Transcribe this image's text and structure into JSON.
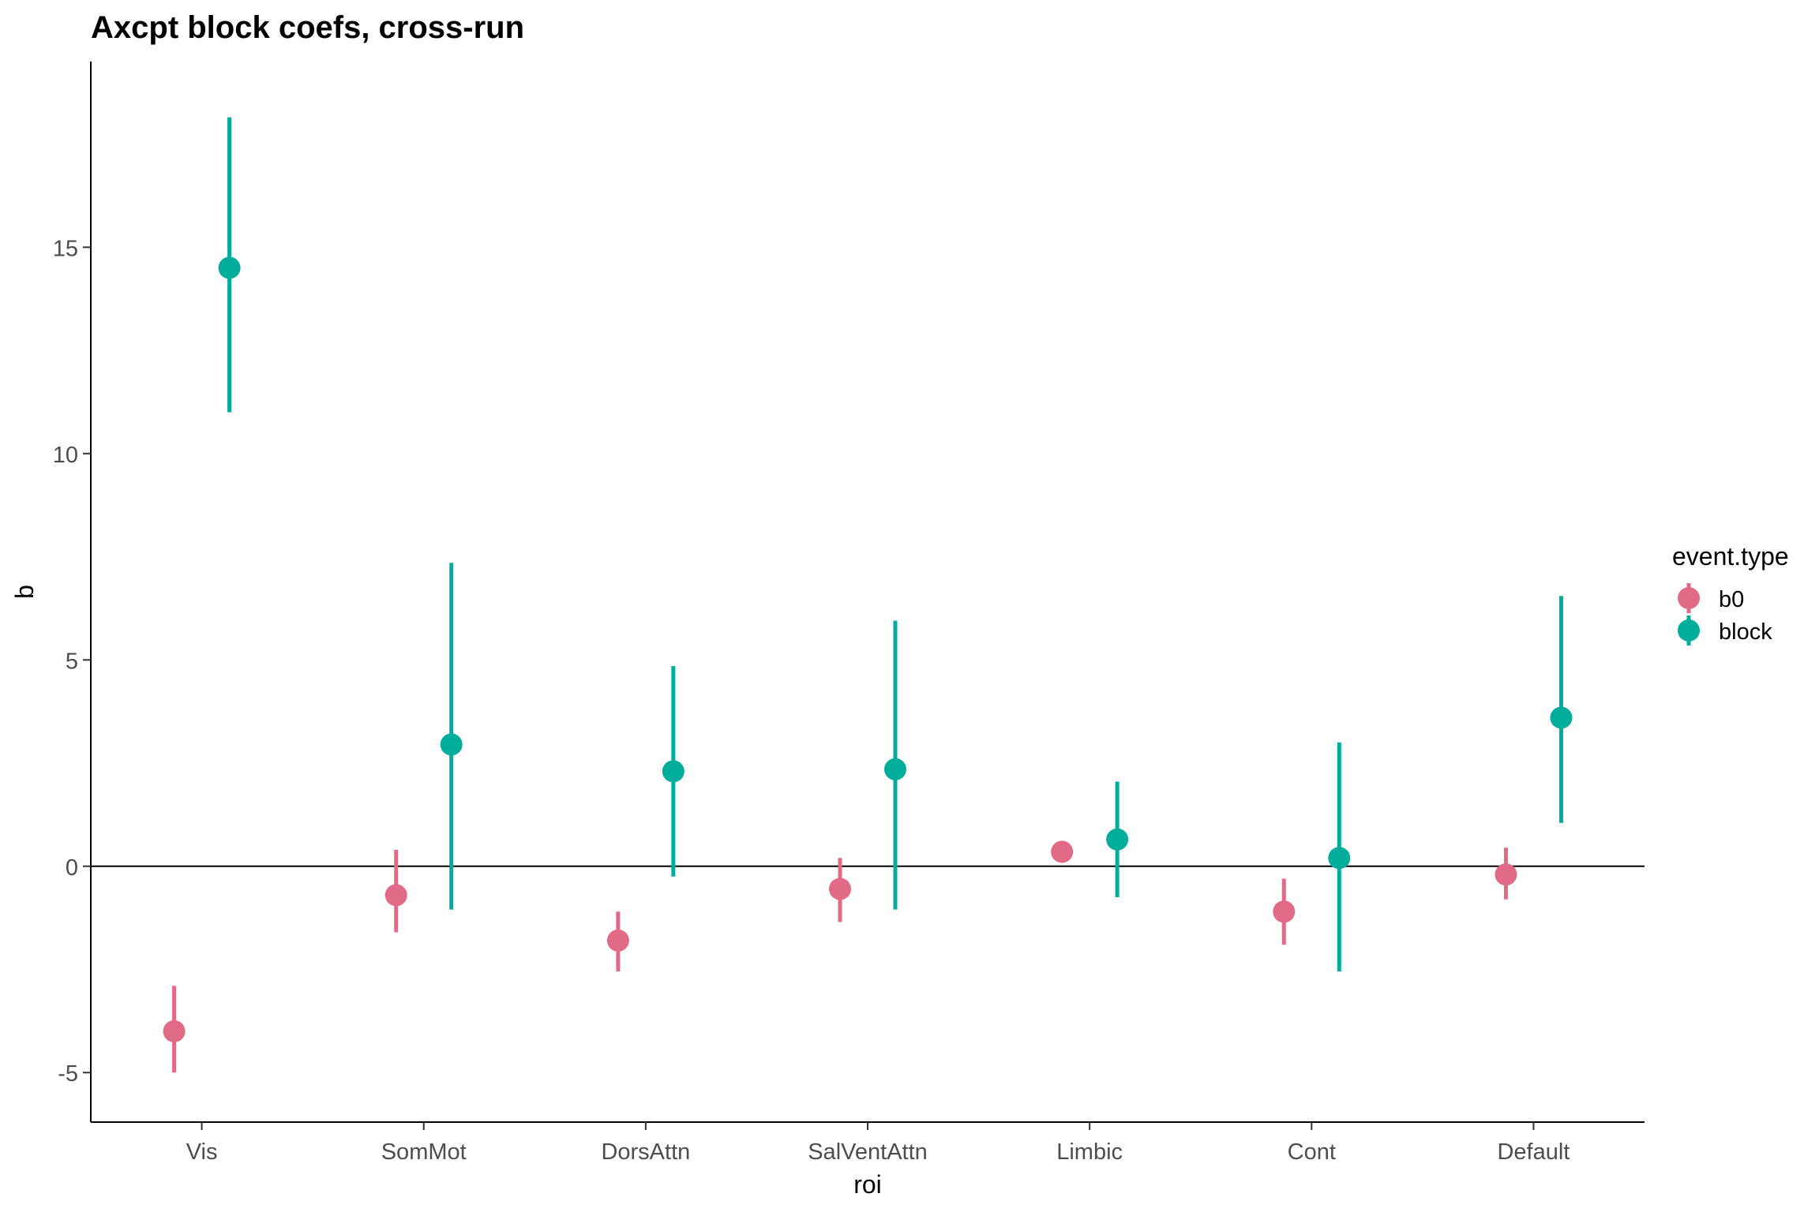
{
  "chart_data": {
    "type": "pointrange",
    "title": "Axcpt block coefs, cross-run",
    "xlabel": "roi",
    "ylabel": "b",
    "categories": [
      "Vis",
      "SomMot",
      "DorsAttn",
      "SalVentAttn",
      "Limbic",
      "Cont",
      "Default"
    ],
    "yticks": [
      -5,
      0,
      5,
      10,
      15
    ],
    "ylim": [
      -6.2,
      19.5
    ],
    "hline": 0,
    "grid": false,
    "legend": {
      "title": "event.type",
      "position": "right"
    },
    "series": [
      {
        "name": "b0",
        "color": "#E16A86",
        "values": [
          -4.0,
          -0.7,
          -1.8,
          -0.55,
          0.35,
          -1.1,
          -0.2
        ],
        "lower": [
          -5.0,
          -1.6,
          -2.55,
          -1.35,
          0.35,
          -1.9,
          -0.8
        ],
        "upper": [
          -2.9,
          0.4,
          -1.1,
          0.2,
          0.35,
          -0.3,
          0.45
        ]
      },
      {
        "name": "block",
        "color": "#00AD9A",
        "values": [
          14.5,
          2.95,
          2.3,
          2.35,
          0.65,
          0.2,
          3.6
        ],
        "lower": [
          11.0,
          -1.05,
          -0.25,
          -1.05,
          -0.75,
          -2.55,
          1.05
        ],
        "upper": [
          18.15,
          7.35,
          4.85,
          5.95,
          2.05,
          3.0,
          6.55
        ]
      }
    ]
  }
}
